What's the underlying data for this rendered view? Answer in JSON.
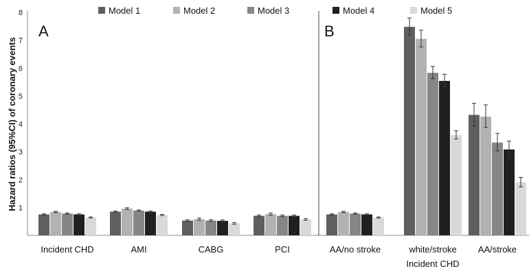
{
  "chart_data": {
    "type": "bar",
    "ylabel": "Hazard ratios (95%CI) of coronary events",
    "ylim": [
      0,
      8
    ],
    "yticks": [
      "8",
      "7",
      "6",
      "5",
      "4",
      "3",
      "2",
      "1"
    ],
    "grid": false,
    "legend_position": "top",
    "panels": [
      "A",
      "B"
    ],
    "categories": [
      {
        "label": "Incident CHD",
        "panel": "A"
      },
      {
        "label": "AMI",
        "panel": "A"
      },
      {
        "label": "CABG",
        "panel": "A"
      },
      {
        "label": "PCI",
        "panel": "A"
      },
      {
        "label": "AA/no stroke",
        "panel": "B"
      },
      {
        "label": "white/stroke",
        "panel": "B"
      },
      {
        "label": "AA/stroke",
        "panel": "B"
      }
    ],
    "group_label": "Incident CHD",
    "series": [
      {
        "name": "Model 1",
        "color": "#5f5f5f",
        "values": [
          0.75,
          0.85,
          0.53,
          0.7,
          0.75,
          7.48,
          4.32
        ],
        "ci": [
          [
            0.73,
            0.77
          ],
          [
            0.83,
            0.87
          ],
          [
            0.5,
            0.56
          ],
          [
            0.67,
            0.73
          ],
          [
            0.73,
            0.77
          ],
          [
            7.18,
            7.8
          ],
          [
            3.92,
            4.74
          ]
        ]
      },
      {
        "name": "Model 2",
        "color": "#b2b2b2",
        "values": [
          0.84,
          0.96,
          0.58,
          0.76,
          0.84,
          7.05,
          4.26
        ],
        "ci": [
          [
            0.82,
            0.86
          ],
          [
            0.93,
            0.99
          ],
          [
            0.54,
            0.62
          ],
          [
            0.72,
            0.8
          ],
          [
            0.82,
            0.86
          ],
          [
            6.76,
            7.36
          ],
          [
            3.87,
            4.68
          ]
        ]
      },
      {
        "name": "Model 3",
        "color": "#868686",
        "values": [
          0.78,
          0.89,
          0.53,
          0.7,
          0.78,
          5.83,
          3.33
        ],
        "ci": [
          [
            0.76,
            0.8
          ],
          [
            0.87,
            0.91
          ],
          [
            0.5,
            0.56
          ],
          [
            0.67,
            0.73
          ],
          [
            0.76,
            0.8
          ],
          [
            5.62,
            6.06
          ],
          [
            3.03,
            3.66
          ]
        ]
      },
      {
        "name": "Model 4",
        "color": "#202020",
        "values": [
          0.75,
          0.85,
          0.52,
          0.7,
          0.75,
          5.54,
          3.08
        ],
        "ci": [
          [
            0.73,
            0.77
          ],
          [
            0.83,
            0.87
          ],
          [
            0.49,
            0.55
          ],
          [
            0.67,
            0.73
          ],
          [
            0.73,
            0.77
          ],
          [
            5.33,
            5.78
          ],
          [
            2.78,
            3.38
          ]
        ]
      },
      {
        "name": "Model 5",
        "color": "#d9d9d9",
        "values": [
          0.64,
          0.73,
          0.43,
          0.57,
          0.64,
          3.6,
          1.9
        ],
        "ci": [
          [
            0.62,
            0.66
          ],
          [
            0.71,
            0.75
          ],
          [
            0.4,
            0.46
          ],
          [
            0.54,
            0.6
          ],
          [
            0.62,
            0.66
          ],
          [
            3.46,
            3.75
          ],
          [
            1.74,
            2.08
          ]
        ]
      }
    ]
  }
}
